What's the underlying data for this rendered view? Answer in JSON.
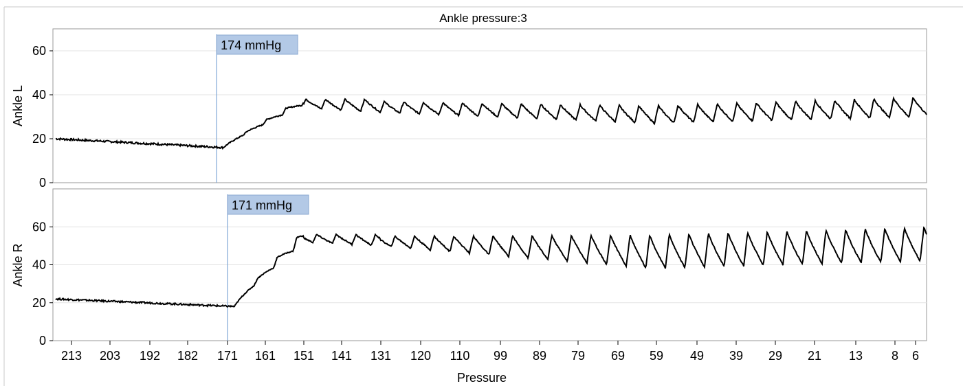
{
  "chart_data": {
    "type": "line",
    "title": "Ankle pressure:3",
    "xlabel": "Pressure",
    "x_tick_labels": [
      "213",
      "203",
      "192",
      "182",
      "171",
      "161",
      "151",
      "141",
      "131",
      "120",
      "110",
      "99",
      "89",
      "79",
      "69",
      "59",
      "49",
      "39",
      "29",
      "21",
      "13",
      "8",
      "6"
    ],
    "panels": [
      {
        "ylabel": "Ankle L",
        "ylim": [
          0,
          70
        ],
        "y_ticks": [
          0,
          20,
          40,
          60
        ],
        "marker": {
          "pressure": 174,
          "label": "174 mmHg"
        },
        "series": {
          "color": "#000000",
          "baseline_start": 20,
          "baseline_before_marker": 16,
          "plateau": 37,
          "pulse_trough_mid": 27,
          "pulse_peak_mid": 35,
          "pulse_trough_end": 30,
          "pulse_peak_end": 39
        }
      },
      {
        "ylabel": "Ankle R",
        "ylim": [
          0,
          80
        ],
        "y_ticks": [
          0,
          20,
          40,
          60
        ],
        "marker": {
          "pressure": 171,
          "label": "171 mmHg"
        },
        "series": {
          "color": "#000000",
          "baseline_start": 22,
          "baseline_before_marker": 18,
          "plateau": 55,
          "pulse_trough_mid": 38,
          "pulse_peak_mid": 56,
          "pulse_trough_end": 42,
          "pulse_peak_end": 60
        }
      }
    ]
  }
}
